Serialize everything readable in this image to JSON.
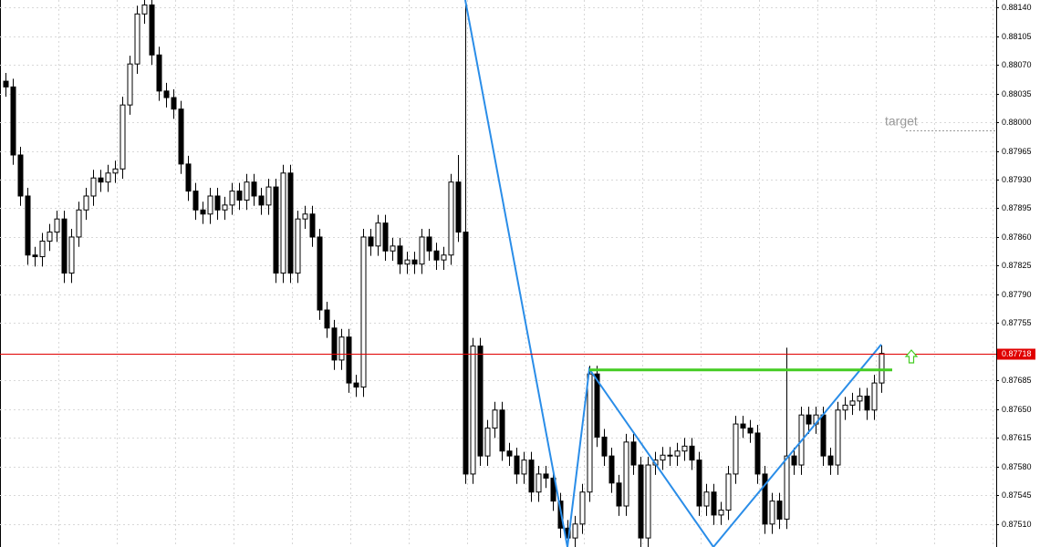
{
  "chart_data": {
    "type": "candlestick",
    "ylim": [
      0.87482,
      0.88149
    ],
    "yticks": [
      {
        "value": 0.8814,
        "label": "0.88140"
      },
      0.88105,
      {
        "value": 0.8807,
        "label": "0.88070"
      },
      0.88035,
      {
        "value": 0.88,
        "label": "0.88000"
      },
      0.87965,
      {
        "value": 0.8793,
        "label": "0.87930"
      },
      0.87895,
      {
        "value": 0.8786,
        "label": "0.87860"
      },
      0.87825,
      {
        "value": 0.8779,
        "label": "0.87790"
      },
      0.87755,
      0.87685,
      {
        "value": 0.8765,
        "label": "0.87650"
      },
      0.87615,
      {
        "value": 0.8758,
        "label": "0.87580"
      },
      0.87545,
      {
        "value": 0.8751,
        "label": "0.87510"
      }
    ],
    "grid": true,
    "bull_color": "#ffffff",
    "bear_color": "#000000",
    "wick_color": "#000000",
    "open": [
      0.8805,
      0.88043,
      0.8796,
      0.8791,
      0.87838,
      0.87836,
      0.87855,
      0.87866,
      0.87882,
      0.87816,
      0.8786,
      0.87893,
      0.8791,
      0.87932,
      0.87927,
      0.87938,
      0.87943,
      0.88021,
      0.88071,
      0.88132,
      0.88143,
      0.88082,
      0.88038,
      0.8803,
      0.88016,
      0.87949,
      0.87916,
      0.87893,
      0.87888,
      0.8791,
      0.87893,
      0.87899,
      0.87916,
      0.87905,
      0.87927,
      0.8791,
      0.87899,
      0.87921,
      0.87816,
      0.87938,
      0.87816,
      0.87882,
      0.87888,
      0.8786,
      0.87771,
      0.87749,
      0.8771,
      0.87738,
      0.87682,
      0.87677,
      0.8786,
      0.87849,
      0.87877,
      0.87843,
      0.87849,
      0.87827,
      0.87832,
      0.87827,
      0.8786,
      0.87843,
      0.87832,
      0.87838,
      0.87927,
      0.87866,
      0.87571,
      0.87727,
      0.87593,
      0.87627,
      0.87649,
      0.87599,
      0.87593,
      0.87571,
      0.87588,
      0.87549,
      0.87571,
      0.87566,
      0.87538,
      0.87505,
      0.87493,
      0.8751,
      0.87549,
      0.87693,
      0.87616,
      0.87593,
      0.8756,
      0.87532,
      0.8761,
      0.87582,
      0.87493,
      0.87582,
      0.87588,
      0.87594,
      0.87593,
      0.87599,
      0.87605,
      0.87588,
      0.87532,
      0.87549,
      0.87521,
      0.87527,
      0.87571,
      0.87632,
      0.87627,
      0.87621,
      0.87571,
      0.8751,
      0.87538,
      0.87516,
      0.87593,
      0.87582,
      0.87643,
      0.87632,
      0.87643,
      0.87593,
      0.87582,
      0.87649,
      0.87655,
      0.8766,
      0.87666,
      0.87649,
      0.87682
    ],
    "high": [
      0.8806,
      0.88053,
      0.8797,
      0.8792,
      0.87848,
      0.87865,
      0.87876,
      0.87892,
      0.87892,
      0.8787,
      0.87903,
      0.8792,
      0.87942,
      0.87942,
      0.87948,
      0.87953,
      0.88031,
      0.88081,
      0.88142,
      0.88149,
      0.88149,
      0.88092,
      0.88048,
      0.8804,
      0.88026,
      0.87959,
      0.87926,
      0.87903,
      0.8792,
      0.8792,
      0.87909,
      0.87926,
      0.87926,
      0.87937,
      0.87937,
      0.8792,
      0.87931,
      0.87931,
      0.87948,
      0.87948,
      0.87892,
      0.87898,
      0.87898,
      0.8787,
      0.87781,
      0.87759,
      0.87748,
      0.87748,
      0.87692,
      0.8787,
      0.8787,
      0.87887,
      0.87887,
      0.87859,
      0.87859,
      0.87842,
      0.87842,
      0.8787,
      0.8787,
      0.87853,
      0.87848,
      0.87937,
      0.8796,
      0.88149,
      0.87737,
      0.87737,
      0.87637,
      0.87659,
      0.87659,
      0.87609,
      0.87603,
      0.87598,
      0.87598,
      0.87581,
      0.87581,
      0.87576,
      0.87548,
      0.87515,
      0.8752,
      0.87559,
      0.87703,
      0.87703,
      0.87626,
      0.87603,
      0.8757,
      0.8762,
      0.8762,
      0.87592,
      0.87592,
      0.87598,
      0.87604,
      0.87604,
      0.87609,
      0.87615,
      0.87615,
      0.87598,
      0.87559,
      0.87559,
      0.87537,
      0.87581,
      0.87642,
      0.87642,
      0.87637,
      0.87631,
      0.87581,
      0.87548,
      0.87548,
      0.87725,
      0.87603,
      0.87653,
      0.87653,
      0.87653,
      0.87653,
      0.87603,
      0.87659,
      0.87665,
      0.8767,
      0.87676,
      0.87676,
      0.87692,
      0.87728
    ],
    "low": [
      0.88031,
      0.87948,
      0.87898,
      0.87826,
      0.87824,
      0.87824,
      0.87843,
      0.87854,
      0.87804,
      0.87804,
      0.87848,
      0.87881,
      0.87898,
      0.87915,
      0.87915,
      0.87926,
      0.87931,
      0.88009,
      0.88059,
      0.8812,
      0.8807,
      0.88026,
      0.88018,
      0.88004,
      0.87937,
      0.87904,
      0.87881,
      0.87876,
      0.87876,
      0.87881,
      0.87881,
      0.87887,
      0.87893,
      0.87893,
      0.87898,
      0.87887,
      0.87887,
      0.87804,
      0.87804,
      0.87804,
      0.87804,
      0.8787,
      0.87848,
      0.87759,
      0.87737,
      0.87698,
      0.87698,
      0.8767,
      0.87665,
      0.87665,
      0.87837,
      0.87837,
      0.87831,
      0.87831,
      0.87815,
      0.87815,
      0.87815,
      0.87815,
      0.87831,
      0.8782,
      0.8782,
      0.87826,
      0.87854,
      0.87559,
      0.87559,
      0.87581,
      0.87581,
      0.87615,
      0.87587,
      0.87581,
      0.87559,
      0.87559,
      0.87537,
      0.87537,
      0.87554,
      0.87526,
      0.87493,
      0.87482,
      0.87482,
      0.87498,
      0.87537,
      0.87604,
      0.87581,
      0.87548,
      0.8752,
      0.8752,
      0.8757,
      0.87482,
      0.87482,
      0.8757,
      0.87576,
      0.87581,
      0.87581,
      0.87587,
      0.87576,
      0.8752,
      0.8752,
      0.87509,
      0.87509,
      0.87515,
      0.87559,
      0.87615,
      0.87609,
      0.87559,
      0.87498,
      0.87498,
      0.87504,
      0.87504,
      0.8757,
      0.8757,
      0.8762,
      0.8762,
      0.87581,
      0.8757,
      0.8757,
      0.87637,
      0.87643,
      0.87648,
      0.87637,
      0.87637,
      0.8767
    ],
    "close": [
      0.88043,
      0.8796,
      0.8791,
      0.87838,
      0.87836,
      0.87855,
      0.87866,
      0.87882,
      0.87816,
      0.8786,
      0.87893,
      0.8791,
      0.87932,
      0.87927,
      0.87938,
      0.87943,
      0.88021,
      0.88071,
      0.88132,
      0.88143,
      0.88082,
      0.88038,
      0.8803,
      0.88016,
      0.87949,
      0.87916,
      0.87893,
      0.87888,
      0.8791,
      0.87893,
      0.87899,
      0.87916,
      0.87905,
      0.87927,
      0.8791,
      0.87899,
      0.87921,
      0.87816,
      0.87938,
      0.87816,
      0.87882,
      0.87888,
      0.8786,
      0.87771,
      0.87749,
      0.8771,
      0.87738,
      0.87682,
      0.87677,
      0.8786,
      0.87849,
      0.87877,
      0.87843,
      0.87849,
      0.87827,
      0.87832,
      0.87827,
      0.8786,
      0.87843,
      0.87832,
      0.87838,
      0.87927,
      0.87866,
      0.87571,
      0.87727,
      0.87593,
      0.87627,
      0.87649,
      0.87599,
      0.87593,
      0.87571,
      0.87588,
      0.87549,
      0.87571,
      0.87566,
      0.87538,
      0.87505,
      0.87493,
      0.8751,
      0.87549,
      0.87693,
      0.87616,
      0.87593,
      0.8756,
      0.87532,
      0.8761,
      0.87582,
      0.87493,
      0.87582,
      0.87588,
      0.87594,
      0.87593,
      0.87599,
      0.87605,
      0.87588,
      0.87532,
      0.87549,
      0.87521,
      0.87527,
      0.87571,
      0.87632,
      0.87627,
      0.87621,
      0.87571,
      0.8751,
      0.87538,
      0.87516,
      0.87593,
      0.87582,
      0.87643,
      0.87632,
      0.87643,
      0.87593,
      0.87582,
      0.87649,
      0.87655,
      0.8766,
      0.87666,
      0.87649,
      0.87682,
      0.87718
    ],
    "price_line": {
      "value": 0.87718,
      "color": "#e00000"
    },
    "target": {
      "label": "target",
      "value": 0.8799,
      "color": "#999999"
    },
    "level": {
      "value": 0.87698,
      "x": [
        80,
        121.5
      ],
      "color": "#44cc22"
    },
    "zigzag": {
      "x": [
        63,
        77,
        80,
        97,
        120
      ],
      "values": [
        0.88149,
        0.87482,
        0.87699,
        0.87482,
        0.87729
      ],
      "color": "#2a8de8"
    }
  }
}
